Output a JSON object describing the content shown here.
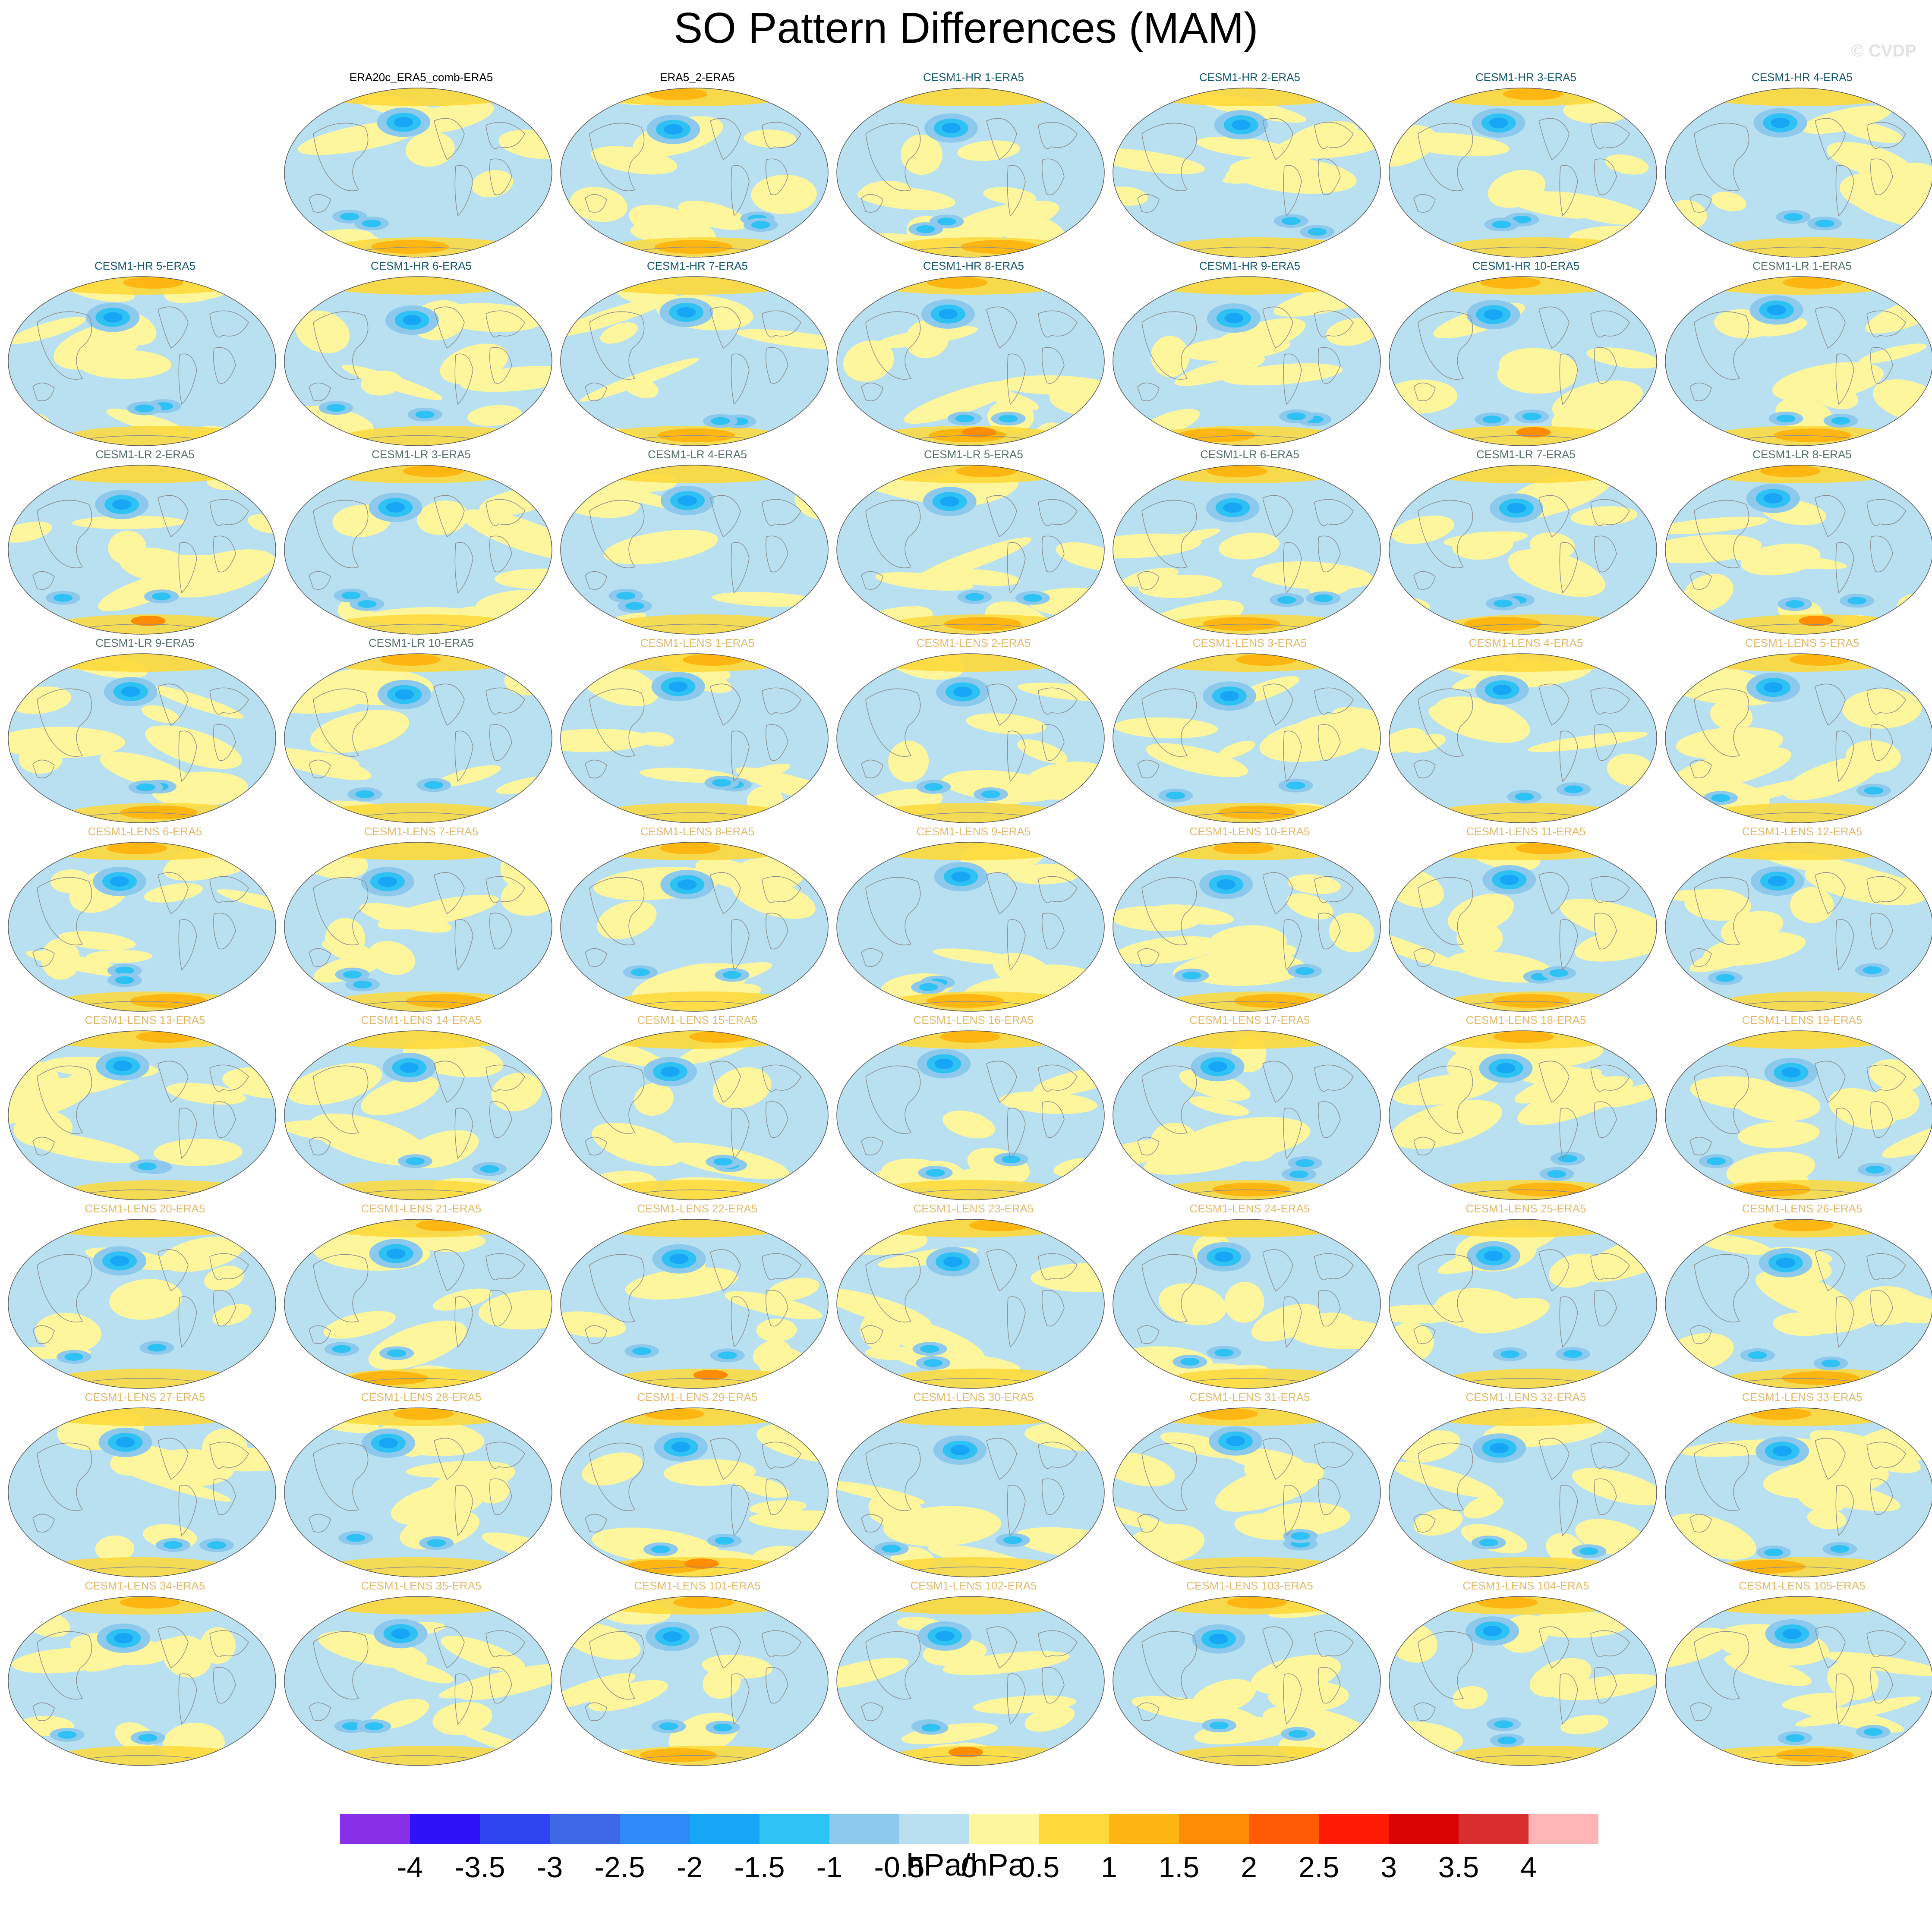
{
  "title": "SO Pattern Differences (MAM)",
  "credit": "© CVDP",
  "units": "hPa/hPa",
  "label_colors": {
    "reanalysis": "#000000",
    "hr": "#14586e",
    "lr": "#55706c",
    "lens": "#e2b86a"
  },
  "colorbar": {
    "colors": [
      "#8a2fe8",
      "#2f12f5",
      "#2d44f0",
      "#3c68e6",
      "#2e88f5",
      "#16a6f5",
      "#2ec1f4",
      "#8cc9ec",
      "#b8e0f0",
      "#fdf69d",
      "#fed93a",
      "#feb612",
      "#fe8c04",
      "#ff5a04",
      "#ff1a04",
      "#d80404",
      "#d92e2e",
      "#ffb5b5"
    ],
    "ticks": [
      "-4",
      "-3.5",
      "-3",
      "-2.5",
      "-2",
      "-1.5",
      "-1",
      "-0.5",
      "0",
      "0.5",
      "1",
      "1.5",
      "2",
      "2.5",
      "3",
      "3.5",
      "4"
    ]
  },
  "panels": [
    {
      "label": "ERA20c_ERA5_comb-ERA5",
      "group": "reanalysis",
      "row": 0,
      "col": 1
    },
    {
      "label": "ERA5_2-ERA5",
      "group": "reanalysis",
      "row": 0,
      "col": 2
    },
    {
      "label": "CESM1-HR 1-ERA5",
      "group": "hr",
      "row": 0,
      "col": 3
    },
    {
      "label": "CESM1-HR 2-ERA5",
      "group": "hr",
      "row": 0,
      "col": 4
    },
    {
      "label": "CESM1-HR 3-ERA5",
      "group": "hr",
      "row": 0,
      "col": 5
    },
    {
      "label": "CESM1-HR 4-ERA5",
      "group": "hr",
      "row": 0,
      "col": 6
    },
    {
      "label": "CESM1-HR 5-ERA5",
      "group": "hr",
      "row": 1,
      "col": 0
    },
    {
      "label": "CESM1-HR 6-ERA5",
      "group": "hr",
      "row": 1,
      "col": 1
    },
    {
      "label": "CESM1-HR 7-ERA5",
      "group": "hr",
      "row": 1,
      "col": 2
    },
    {
      "label": "CESM1-HR 8-ERA5",
      "group": "hr",
      "row": 1,
      "col": 3
    },
    {
      "label": "CESM1-HR 9-ERA5",
      "group": "hr",
      "row": 1,
      "col": 4
    },
    {
      "label": "CESM1-HR 10-ERA5",
      "group": "hr",
      "row": 1,
      "col": 5
    },
    {
      "label": "CESM1-LR 1-ERA5",
      "group": "lr",
      "row": 1,
      "col": 6
    },
    {
      "label": "CESM1-LR 2-ERA5",
      "group": "lr",
      "row": 2,
      "col": 0
    },
    {
      "label": "CESM1-LR 3-ERA5",
      "group": "lr",
      "row": 2,
      "col": 1
    },
    {
      "label": "CESM1-LR 4-ERA5",
      "group": "lr",
      "row": 2,
      "col": 2
    },
    {
      "label": "CESM1-LR 5-ERA5",
      "group": "lr",
      "row": 2,
      "col": 3
    },
    {
      "label": "CESM1-LR 6-ERA5",
      "group": "lr",
      "row": 2,
      "col": 4
    },
    {
      "label": "CESM1-LR 7-ERA5",
      "group": "lr",
      "row": 2,
      "col": 5
    },
    {
      "label": "CESM1-LR 8-ERA5",
      "group": "lr",
      "row": 2,
      "col": 6
    },
    {
      "label": "CESM1-LR 9-ERA5",
      "group": "lr",
      "row": 3,
      "col": 0
    },
    {
      "label": "CESM1-LR 10-ERA5",
      "group": "lr",
      "row": 3,
      "col": 1
    },
    {
      "label": "CESM1-LENS 1-ERA5",
      "group": "lens",
      "row": 3,
      "col": 2
    },
    {
      "label": "CESM1-LENS 2-ERA5",
      "group": "lens",
      "row": 3,
      "col": 3
    },
    {
      "label": "CESM1-LENS 3-ERA5",
      "group": "lens",
      "row": 3,
      "col": 4
    },
    {
      "label": "CESM1-LENS 4-ERA5",
      "group": "lens",
      "row": 3,
      "col": 5
    },
    {
      "label": "CESM1-LENS 5-ERA5",
      "group": "lens",
      "row": 3,
      "col": 6
    },
    {
      "label": "CESM1-LENS 6-ERA5",
      "group": "lens",
      "row": 4,
      "col": 0
    },
    {
      "label": "CESM1-LENS 7-ERA5",
      "group": "lens",
      "row": 4,
      "col": 1
    },
    {
      "label": "CESM1-LENS 8-ERA5",
      "group": "lens",
      "row": 4,
      "col": 2
    },
    {
      "label": "CESM1-LENS 9-ERA5",
      "group": "lens",
      "row": 4,
      "col": 3
    },
    {
      "label": "CESM1-LENS 10-ERA5",
      "group": "lens",
      "row": 4,
      "col": 4
    },
    {
      "label": "CESM1-LENS 11-ERA5",
      "group": "lens",
      "row": 4,
      "col": 5
    },
    {
      "label": "CESM1-LENS 12-ERA5",
      "group": "lens",
      "row": 4,
      "col": 6
    },
    {
      "label": "CESM1-LENS 13-ERA5",
      "group": "lens",
      "row": 5,
      "col": 0
    },
    {
      "label": "CESM1-LENS 14-ERA5",
      "group": "lens",
      "row": 5,
      "col": 1
    },
    {
      "label": "CESM1-LENS 15-ERA5",
      "group": "lens",
      "row": 5,
      "col": 2
    },
    {
      "label": "CESM1-LENS 16-ERA5",
      "group": "lens",
      "row": 5,
      "col": 3
    },
    {
      "label": "CESM1-LENS 17-ERA5",
      "group": "lens",
      "row": 5,
      "col": 4
    },
    {
      "label": "CESM1-LENS 18-ERA5",
      "group": "lens",
      "row": 5,
      "col": 5
    },
    {
      "label": "CESM1-LENS 19-ERA5",
      "group": "lens",
      "row": 5,
      "col": 6
    },
    {
      "label": "CESM1-LENS 20-ERA5",
      "group": "lens",
      "row": 6,
      "col": 0
    },
    {
      "label": "CESM1-LENS 21-ERA5",
      "group": "lens",
      "row": 6,
      "col": 1
    },
    {
      "label": "CESM1-LENS 22-ERA5",
      "group": "lens",
      "row": 6,
      "col": 2
    },
    {
      "label": "CESM1-LENS 23-ERA5",
      "group": "lens",
      "row": 6,
      "col": 3
    },
    {
      "label": "CESM1-LENS 24-ERA5",
      "group": "lens",
      "row": 6,
      "col": 4
    },
    {
      "label": "CESM1-LENS 25-ERA5",
      "group": "lens",
      "row": 6,
      "col": 5
    },
    {
      "label": "CESM1-LENS 26-ERA5",
      "group": "lens",
      "row": 6,
      "col": 6
    },
    {
      "label": "CESM1-LENS 27-ERA5",
      "group": "lens",
      "row": 7,
      "col": 0
    },
    {
      "label": "CESM1-LENS 28-ERA5",
      "group": "lens",
      "row": 7,
      "col": 1
    },
    {
      "label": "CESM1-LENS 29-ERA5",
      "group": "lens",
      "row": 7,
      "col": 2
    },
    {
      "label": "CESM1-LENS 30-ERA5",
      "group": "lens",
      "row": 7,
      "col": 3
    },
    {
      "label": "CESM1-LENS 31-ERA5",
      "group": "lens",
      "row": 7,
      "col": 4
    },
    {
      "label": "CESM1-LENS 32-ERA5",
      "group": "lens",
      "row": 7,
      "col": 5
    },
    {
      "label": "CESM1-LENS 33-ERA5",
      "group": "lens",
      "row": 7,
      "col": 6
    },
    {
      "label": "CESM1-LENS 34-ERA5",
      "group": "lens",
      "row": 8,
      "col": 0
    },
    {
      "label": "CESM1-LENS 35-ERA5",
      "group": "lens",
      "row": 8,
      "col": 1
    },
    {
      "label": "CESM1-LENS 101-ERA5",
      "group": "lens",
      "row": 8,
      "col": 2
    },
    {
      "label": "CESM1-LENS 102-ERA5",
      "group": "lens",
      "row": 8,
      "col": 3
    },
    {
      "label": "CESM1-LENS 103-ERA5",
      "group": "lens",
      "row": 8,
      "col": 4
    },
    {
      "label": "CESM1-LENS 104-ERA5",
      "group": "lens",
      "row": 8,
      "col": 5
    },
    {
      "label": "CESM1-LENS 105-ERA5",
      "group": "lens",
      "row": 8,
      "col": 6
    }
  ]
}
